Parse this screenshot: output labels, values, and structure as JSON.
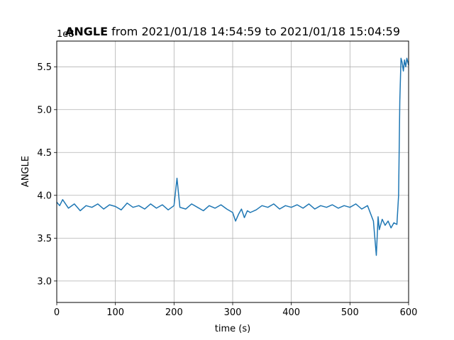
{
  "chart_data": {
    "type": "line",
    "title_bold": "ANGLE",
    "title_rest": " from 2021/01/18 14:54:59 to 2021/01/18 15:04:59",
    "xlabel": "time (s)",
    "ylabel": "ANGLE",
    "y_offset_text": "1e8",
    "xlim": [
      0,
      600
    ],
    "ylim": [
      2.75,
      5.8
    ],
    "xticks": [
      0,
      100,
      200,
      300,
      400,
      500,
      600
    ],
    "xtick_labels": [
      "0",
      "100",
      "200",
      "300",
      "400",
      "500",
      "600"
    ],
    "yticks": [
      3.0,
      3.5,
      4.0,
      4.5,
      5.0,
      5.5
    ],
    "ytick_labels": [
      "3.0",
      "3.5",
      "4.0",
      "4.5",
      "5.0",
      "5.5"
    ],
    "grid": true,
    "line_color": "#1f77b4",
    "series": [
      {
        "x": [
          0,
          5,
          10,
          20,
          30,
          40,
          50,
          60,
          70,
          80,
          90,
          100,
          110,
          120,
          130,
          140,
          150,
          160,
          170,
          180,
          190,
          200,
          205,
          210,
          220,
          230,
          240,
          250,
          260,
          270,
          280,
          290,
          300,
          305,
          310,
          315,
          320,
          325,
          330,
          340,
          350,
          360,
          370,
          380,
          390,
          400,
          410,
          420,
          430,
          440,
          450,
          460,
          470,
          480,
          490,
          500,
          510,
          520,
          530,
          540,
          545,
          548,
          550,
          555,
          560,
          565,
          570,
          575,
          580,
          583,
          585,
          587,
          589,
          591,
          593,
          595,
          597,
          600
        ],
        "y": [
          3.92,
          3.88,
          3.95,
          3.85,
          3.9,
          3.82,
          3.88,
          3.86,
          3.9,
          3.84,
          3.89,
          3.87,
          3.83,
          3.91,
          3.86,
          3.88,
          3.84,
          3.9,
          3.85,
          3.89,
          3.83,
          3.88,
          4.2,
          3.86,
          3.84,
          3.9,
          3.86,
          3.82,
          3.88,
          3.85,
          3.89,
          3.84,
          3.8,
          3.7,
          3.78,
          3.84,
          3.74,
          3.82,
          3.8,
          3.83,
          3.88,
          3.86,
          3.9,
          3.84,
          3.88,
          3.86,
          3.89,
          3.85,
          3.9,
          3.84,
          3.88,
          3.86,
          3.89,
          3.85,
          3.88,
          3.86,
          3.9,
          3.84,
          3.88,
          3.7,
          3.3,
          3.75,
          3.6,
          3.72,
          3.65,
          3.7,
          3.62,
          3.68,
          3.66,
          4.0,
          5.1,
          5.6,
          5.55,
          5.45,
          5.58,
          5.5,
          5.6,
          5.52
        ]
      }
    ]
  }
}
